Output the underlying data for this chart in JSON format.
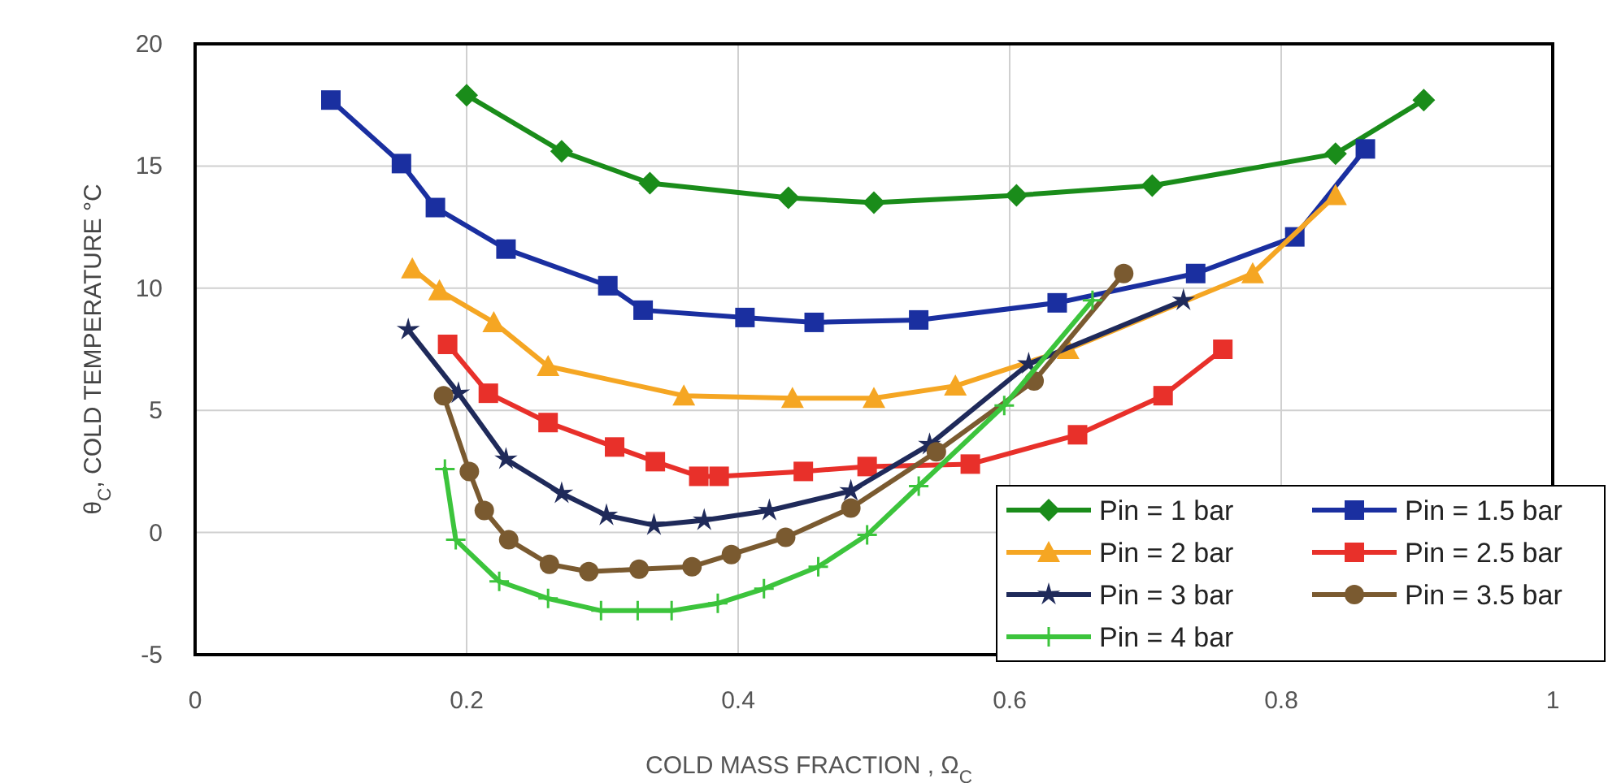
{
  "chart_data": {
    "type": "line",
    "xlabel": "COLD MASS FRACTION ,  Ω$_{C}$",
    "ylabel": "θ$_{C}$,  COLD TEMPERATURE °C",
    "xlim": [
      0,
      1
    ],
    "xticks": [
      0,
      0.2,
      0.4,
      0.6,
      0.8,
      1
    ],
    "ylim": [
      -5,
      20
    ],
    "yticks": [
      -5,
      0,
      5,
      10,
      15,
      20
    ],
    "grid": true,
    "legend": "bottom right",
    "line_style": "solid",
    "series": [
      {
        "name": "Pin = 1 bar",
        "color": "#1a8c1a",
        "marker": "diamond",
        "x": [
          0.2,
          0.27,
          0.335,
          0.437,
          0.5,
          0.605,
          0.705,
          0.84,
          0.905
        ],
        "values": [
          17.9,
          15.6,
          14.3,
          13.7,
          13.5,
          13.8,
          14.2,
          15.5,
          17.7
        ]
      },
      {
        "name": "Pin = 1.5 bar",
        "color": "#1a2fa0",
        "marker": "square",
        "x": [
          0.1,
          0.152,
          0.177,
          0.229,
          0.304,
          0.33,
          0.405,
          0.456,
          0.533,
          0.635,
          0.737,
          0.81,
          0.862
        ],
        "values": [
          17.7,
          15.1,
          13.3,
          11.6,
          10.1,
          9.1,
          8.8,
          8.6,
          8.7,
          9.4,
          10.6,
          12.1,
          15.7
        ]
      },
      {
        "name": "Pin = 2 bar",
        "color": "#f5a623",
        "marker": "triangle",
        "x": [
          0.16,
          0.18,
          0.22,
          0.26,
          0.36,
          0.44,
          0.5,
          0.56,
          0.643,
          0.779,
          0.84
        ],
        "values": [
          10.8,
          9.9,
          8.6,
          6.8,
          5.6,
          5.5,
          5.5,
          6.0,
          7.5,
          10.6,
          13.8
        ]
      },
      {
        "name": "Pin = 2.5 bar",
        "color": "#e8302a",
        "marker": "square",
        "x": [
          0.186,
          0.216,
          0.26,
          0.309,
          0.339,
          0.371,
          0.386,
          0.448,
          0.495,
          0.571,
          0.65,
          0.713,
          0.757
        ],
        "values": [
          7.7,
          5.7,
          4.5,
          3.5,
          2.9,
          2.3,
          2.3,
          2.5,
          2.7,
          2.8,
          4.0,
          5.6,
          7.5
        ]
      },
      {
        "name": "Pin = 3 bar",
        "color": "#1f2a5a",
        "marker": "star",
        "x": [
          0.157,
          0.194,
          0.229,
          0.27,
          0.303,
          0.338,
          0.375,
          0.423,
          0.483,
          0.541,
          0.614,
          0.728
        ],
        "values": [
          8.3,
          5.7,
          3.0,
          1.6,
          0.7,
          0.3,
          0.5,
          0.9,
          1.7,
          3.6,
          6.9,
          9.5
        ]
      },
      {
        "name": "Pin = 3.5 bar",
        "color": "#7a5a30",
        "marker": "circle",
        "x": [
          0.183,
          0.202,
          0.213,
          0.231,
          0.261,
          0.29,
          0.327,
          0.366,
          0.395,
          0.435,
          0.483,
          0.546,
          0.618,
          0.684
        ],
        "values": [
          5.6,
          2.5,
          0.9,
          -0.3,
          -1.3,
          -1.6,
          -1.5,
          -1.4,
          -0.9,
          -0.2,
          1.0,
          3.3,
          6.2,
          10.6
        ]
      },
      {
        "name": "Pin = 4 bar",
        "color": "#3cc43c",
        "marker": "cross",
        "x": [
          0.184,
          0.192,
          0.224,
          0.26,
          0.299,
          0.326,
          0.351,
          0.385,
          0.419,
          0.459,
          0.495,
          0.533,
          0.596,
          0.661
        ],
        "values": [
          2.6,
          -0.3,
          -2.0,
          -2.7,
          -3.2,
          -3.2,
          -3.2,
          -2.9,
          -2.3,
          -1.4,
          -0.1,
          1.9,
          5.2,
          9.5
        ]
      }
    ]
  }
}
